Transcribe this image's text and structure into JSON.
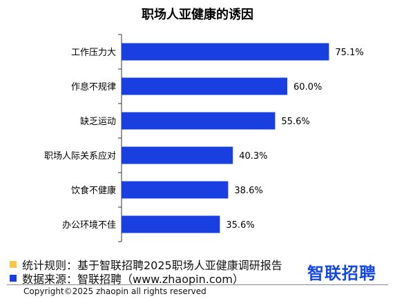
{
  "chart_data": {
    "type": "bar",
    "orientation": "horizontal",
    "title": "职场人亚健康的诱因",
    "categories": [
      "工作压力大",
      "作息不规律",
      "缺乏运动",
      "职场人际关系应对",
      "饮食不健康",
      "办公环境不佳"
    ],
    "values": [
      75.1,
      60.0,
      55.6,
      40.3,
      38.6,
      35.6
    ],
    "value_labels": [
      "75.1%",
      "60.0%",
      "55.6%",
      "40.3%",
      "38.6%",
      "35.6%"
    ],
    "xlim": [
      0,
      80
    ],
    "grid": false,
    "bar_color": "#1a3fe0"
  },
  "notes": {
    "rule_text": "统计规则：基于智联招聘2025职场人亚健康调研报告",
    "rule_color": "#f7c84a",
    "source_text": "数据来源：智联招聘（www.zhaopin.com）",
    "source_color": "#1a3fe0"
  },
  "brand": {
    "logo_text": "智联招聘"
  },
  "copyright": "Copyright©2025 zhaopin all rights reserved"
}
